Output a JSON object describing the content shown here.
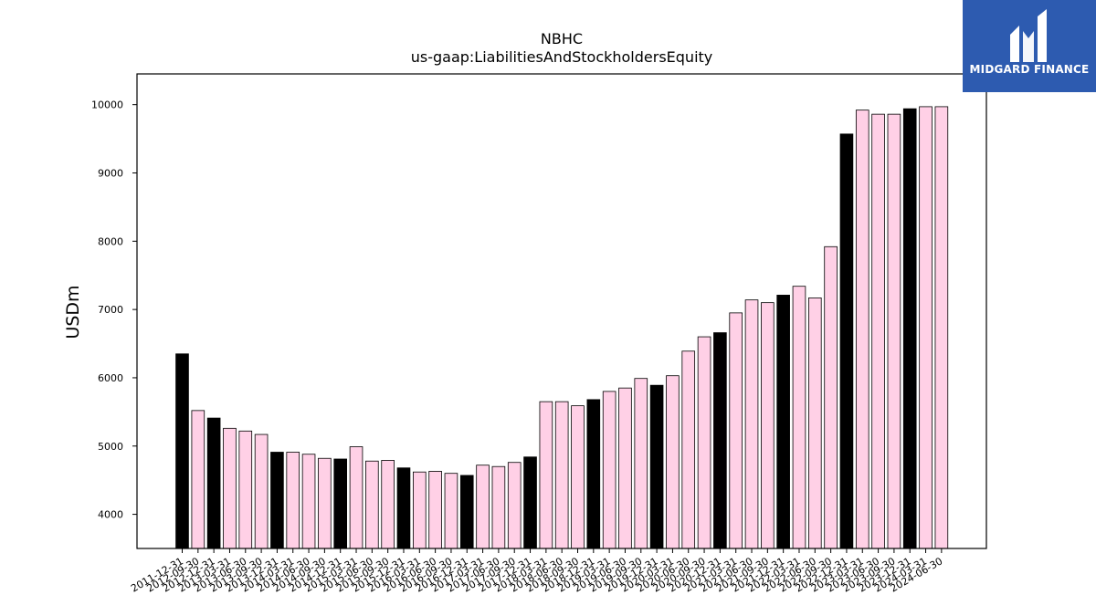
{
  "chart_data": {
    "type": "bar",
    "title": "NBHC",
    "subtitle": "us-gaap:LiabilitiesAndStockholdersEquity",
    "ylabel": "USDm",
    "xlabel": "",
    "ylim": [
      3500,
      10450
    ],
    "yticks": [
      4000,
      5000,
      6000,
      7000,
      8000,
      9000,
      10000
    ],
    "grid": false,
    "colors": {
      "annual": "#000000",
      "quarterly": "#ffd0e6",
      "edge": "#000000"
    },
    "categories": [
      "2011-12-31",
      "2012-09-30",
      "2012-12-31",
      "2013-03-31",
      "2013-06-30",
      "2013-09-30",
      "2013-12-31",
      "2014-03-31",
      "2014-06-30",
      "2014-09-30",
      "2014-12-31",
      "2015-03-31",
      "2015-06-30",
      "2015-09-30",
      "2015-12-31",
      "2016-03-31",
      "2016-06-30",
      "2016-09-30",
      "2016-12-31",
      "2017-03-31",
      "2017-06-30",
      "2017-09-30",
      "2017-12-31",
      "2018-03-31",
      "2018-06-30",
      "2018-09-30",
      "2018-12-31",
      "2019-03-31",
      "2019-06-30",
      "2019-09-30",
      "2019-12-31",
      "2020-03-31",
      "2020-06-30",
      "2020-09-30",
      "2020-12-31",
      "2021-03-31",
      "2021-06-30",
      "2021-09-30",
      "2021-12-31",
      "2022-03-31",
      "2022-06-30",
      "2022-09-30",
      "2022-12-31",
      "2023-03-31",
      "2023-06-30",
      "2023-09-30",
      "2023-12-31",
      "2024-03-31",
      "2024-06-30"
    ],
    "values": [
      6350,
      5520,
      5410,
      5260,
      5220,
      5170,
      4910,
      4910,
      4880,
      4820,
      4810,
      4990,
      4780,
      4790,
      4680,
      4620,
      4630,
      4600,
      4570,
      4720,
      4700,
      4760,
      4840,
      5650,
      5650,
      5590,
      5680,
      5800,
      5850,
      5990,
      5890,
      6030,
      6390,
      6600,
      6660,
      6950,
      7140,
      7100,
      7210,
      7340,
      7170,
      7920,
      9570,
      9920,
      9860,
      9860,
      9940,
      9970,
      9970
    ],
    "annual": [
      true,
      false,
      true,
      false,
      false,
      false,
      true,
      false,
      false,
      false,
      true,
      false,
      false,
      false,
      true,
      false,
      false,
      false,
      true,
      false,
      false,
      false,
      true,
      false,
      false,
      false,
      true,
      false,
      false,
      false,
      true,
      false,
      false,
      false,
      true,
      false,
      false,
      false,
      true,
      false,
      false,
      false,
      true,
      false,
      false,
      false,
      true,
      false,
      false
    ]
  },
  "logo": {
    "text": "MIDGARD FINANCE",
    "icon": "midgard-logo-icon",
    "background": "#2d5bb0"
  }
}
